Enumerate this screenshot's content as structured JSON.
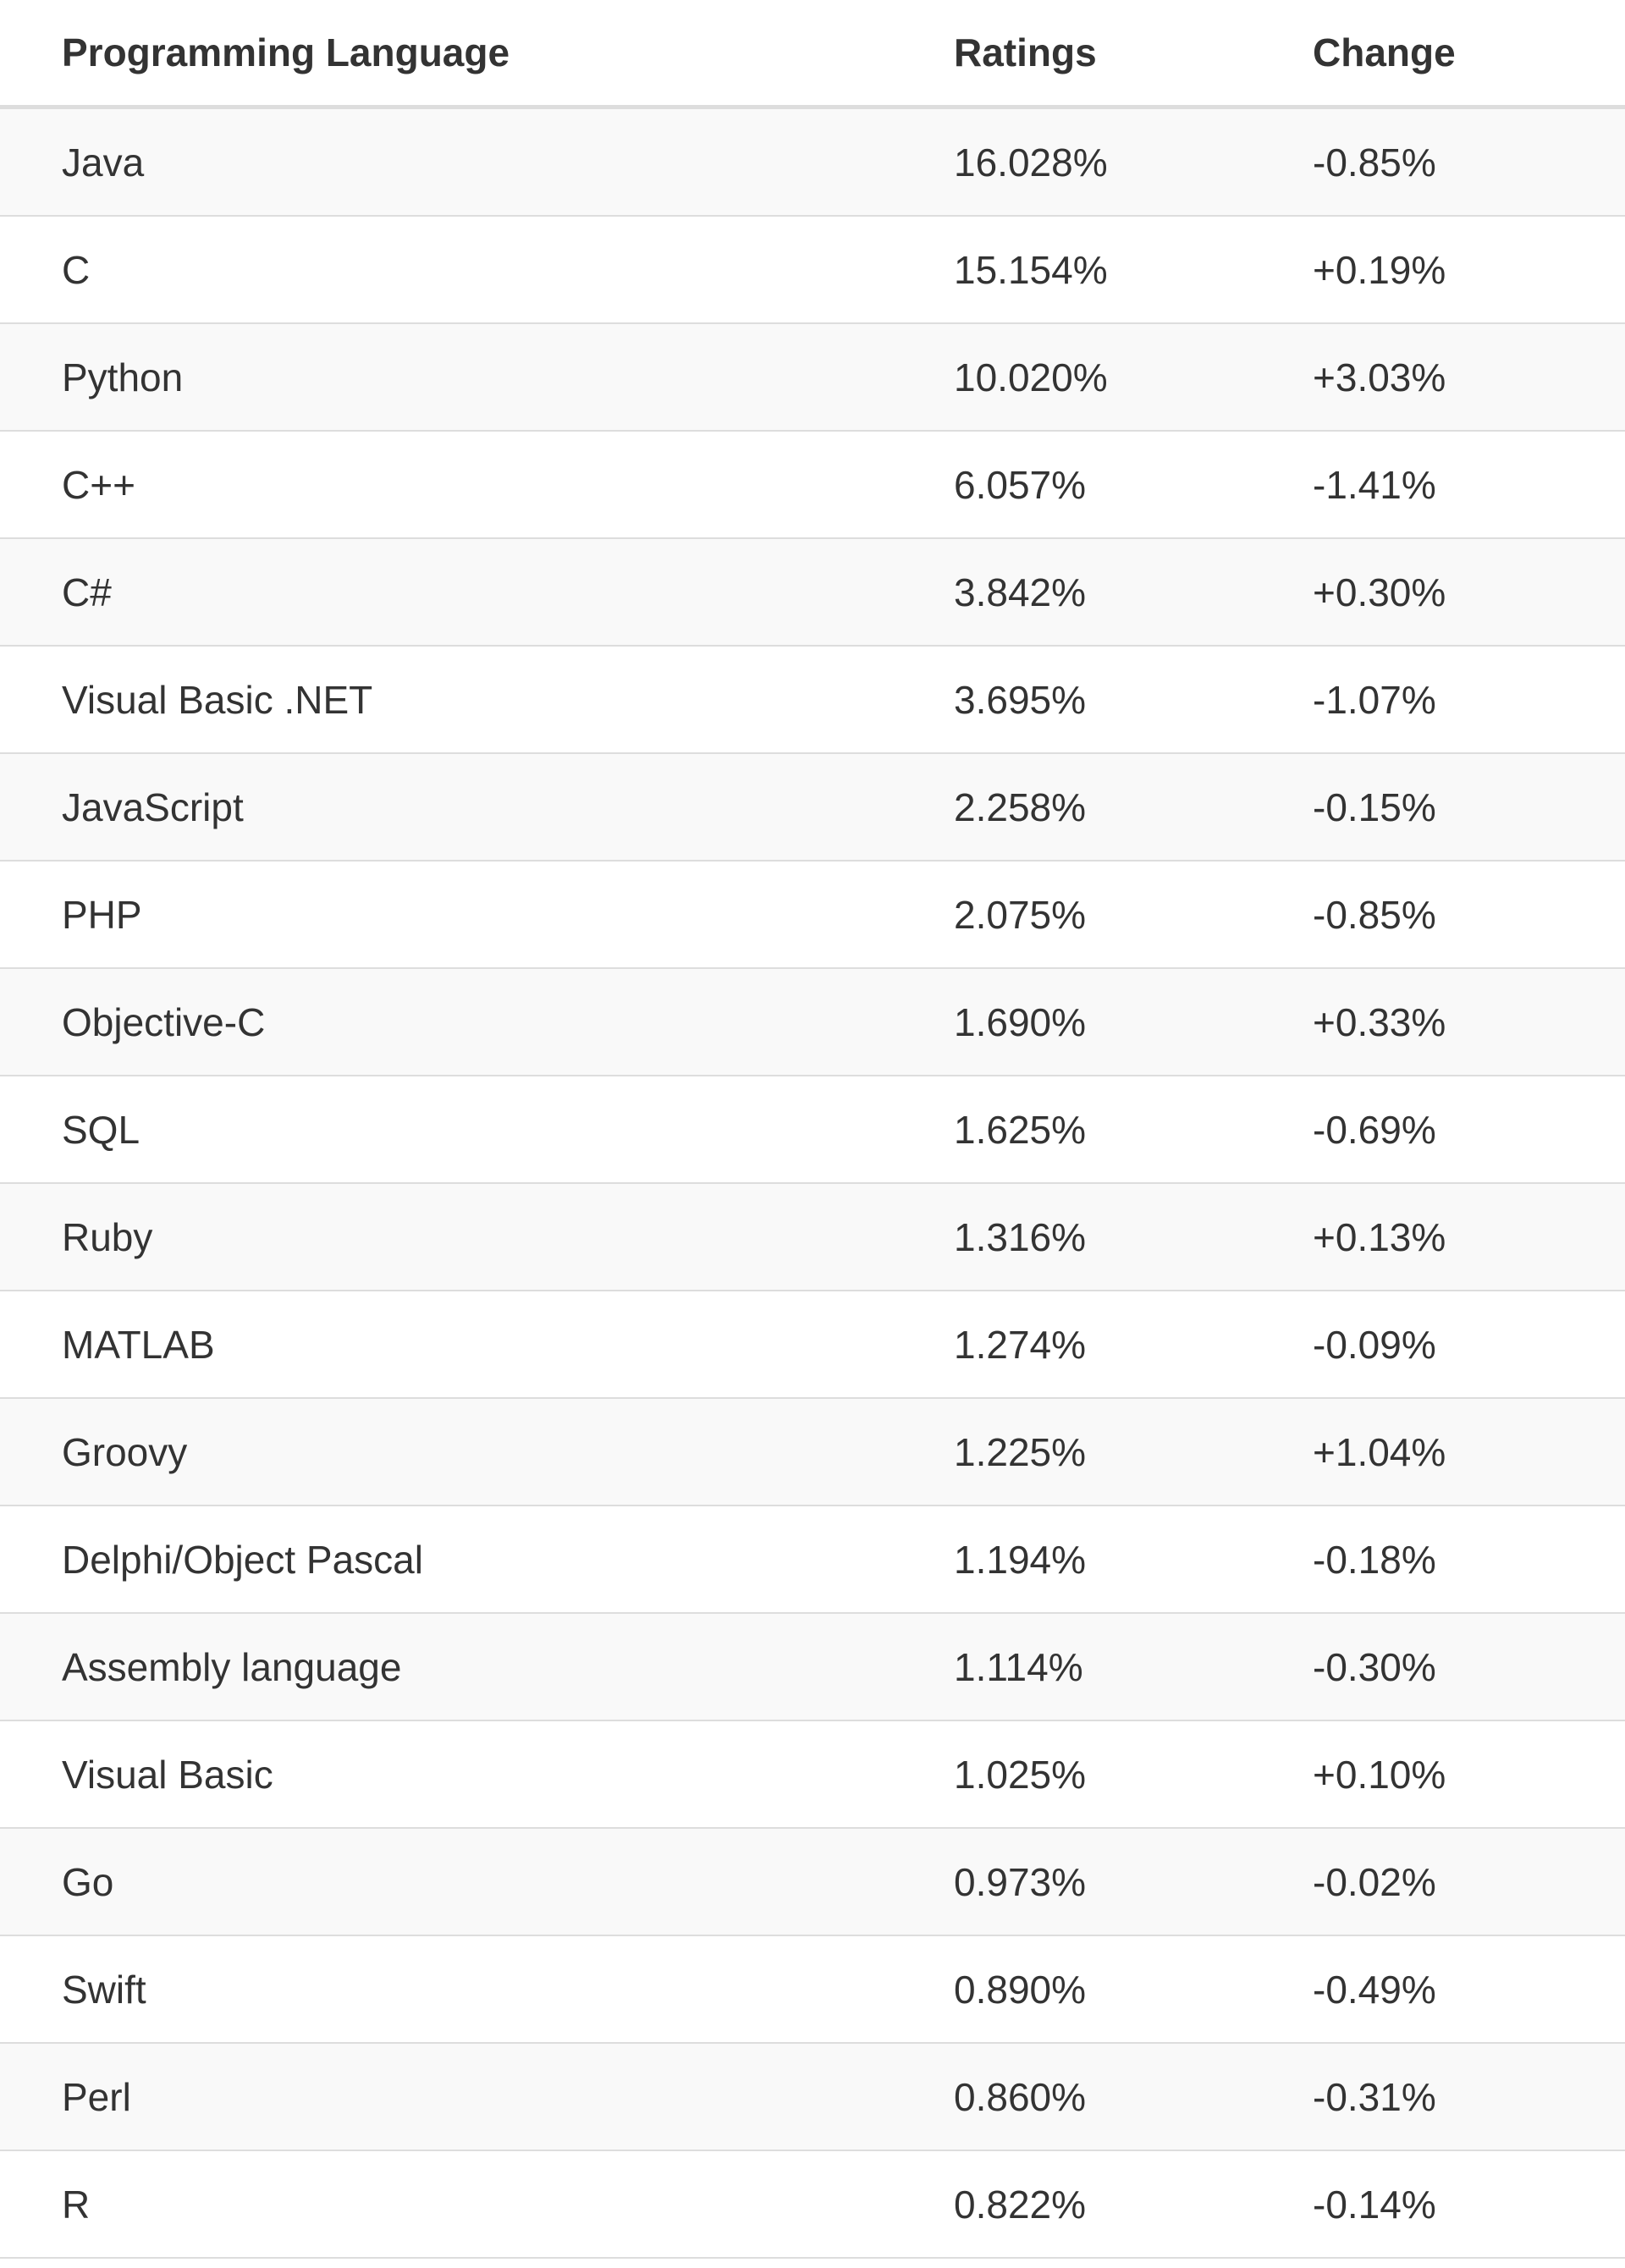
{
  "table": {
    "headers": {
      "language": "Programming Language",
      "ratings": "Ratings",
      "change": "Change"
    },
    "rows": [
      {
        "language": "Java",
        "ratings": "16.028%",
        "change": "-0.85%"
      },
      {
        "language": "C",
        "ratings": "15.154%",
        "change": "+0.19%"
      },
      {
        "language": "Python",
        "ratings": "10.020%",
        "change": "+3.03%"
      },
      {
        "language": "C++",
        "ratings": "6.057%",
        "change": "-1.41%"
      },
      {
        "language": "C#",
        "ratings": "3.842%",
        "change": "+0.30%"
      },
      {
        "language": "Visual Basic .NET",
        "ratings": "3.695%",
        "change": "-1.07%"
      },
      {
        "language": "JavaScript",
        "ratings": "2.258%",
        "change": "-0.15%"
      },
      {
        "language": "PHP",
        "ratings": "2.075%",
        "change": "-0.85%"
      },
      {
        "language": "Objective-C",
        "ratings": "1.690%",
        "change": "+0.33%"
      },
      {
        "language": "SQL",
        "ratings": "1.625%",
        "change": "-0.69%"
      },
      {
        "language": "Ruby",
        "ratings": "1.316%",
        "change": "+0.13%"
      },
      {
        "language": "MATLAB",
        "ratings": "1.274%",
        "change": "-0.09%"
      },
      {
        "language": "Groovy",
        "ratings": "1.225%",
        "change": "+1.04%"
      },
      {
        "language": "Delphi/Object Pascal",
        "ratings": "1.194%",
        "change": "-0.18%"
      },
      {
        "language": "Assembly language",
        "ratings": "1.114%",
        "change": "-0.30%"
      },
      {
        "language": "Visual Basic",
        "ratings": "1.025%",
        "change": "+0.10%"
      },
      {
        "language": "Go",
        "ratings": "0.973%",
        "change": "-0.02%"
      },
      {
        "language": "Swift",
        "ratings": "0.890%",
        "change": "-0.49%"
      },
      {
        "language": "Perl",
        "ratings": "0.860%",
        "change": "-0.31%"
      },
      {
        "language": "R",
        "ratings": "0.822%",
        "change": "-0.14%"
      }
    ]
  },
  "colors": {
    "text": "#333333",
    "stripe": "#f9f9f9",
    "border": "#dddddd",
    "background": "#ffffff"
  }
}
